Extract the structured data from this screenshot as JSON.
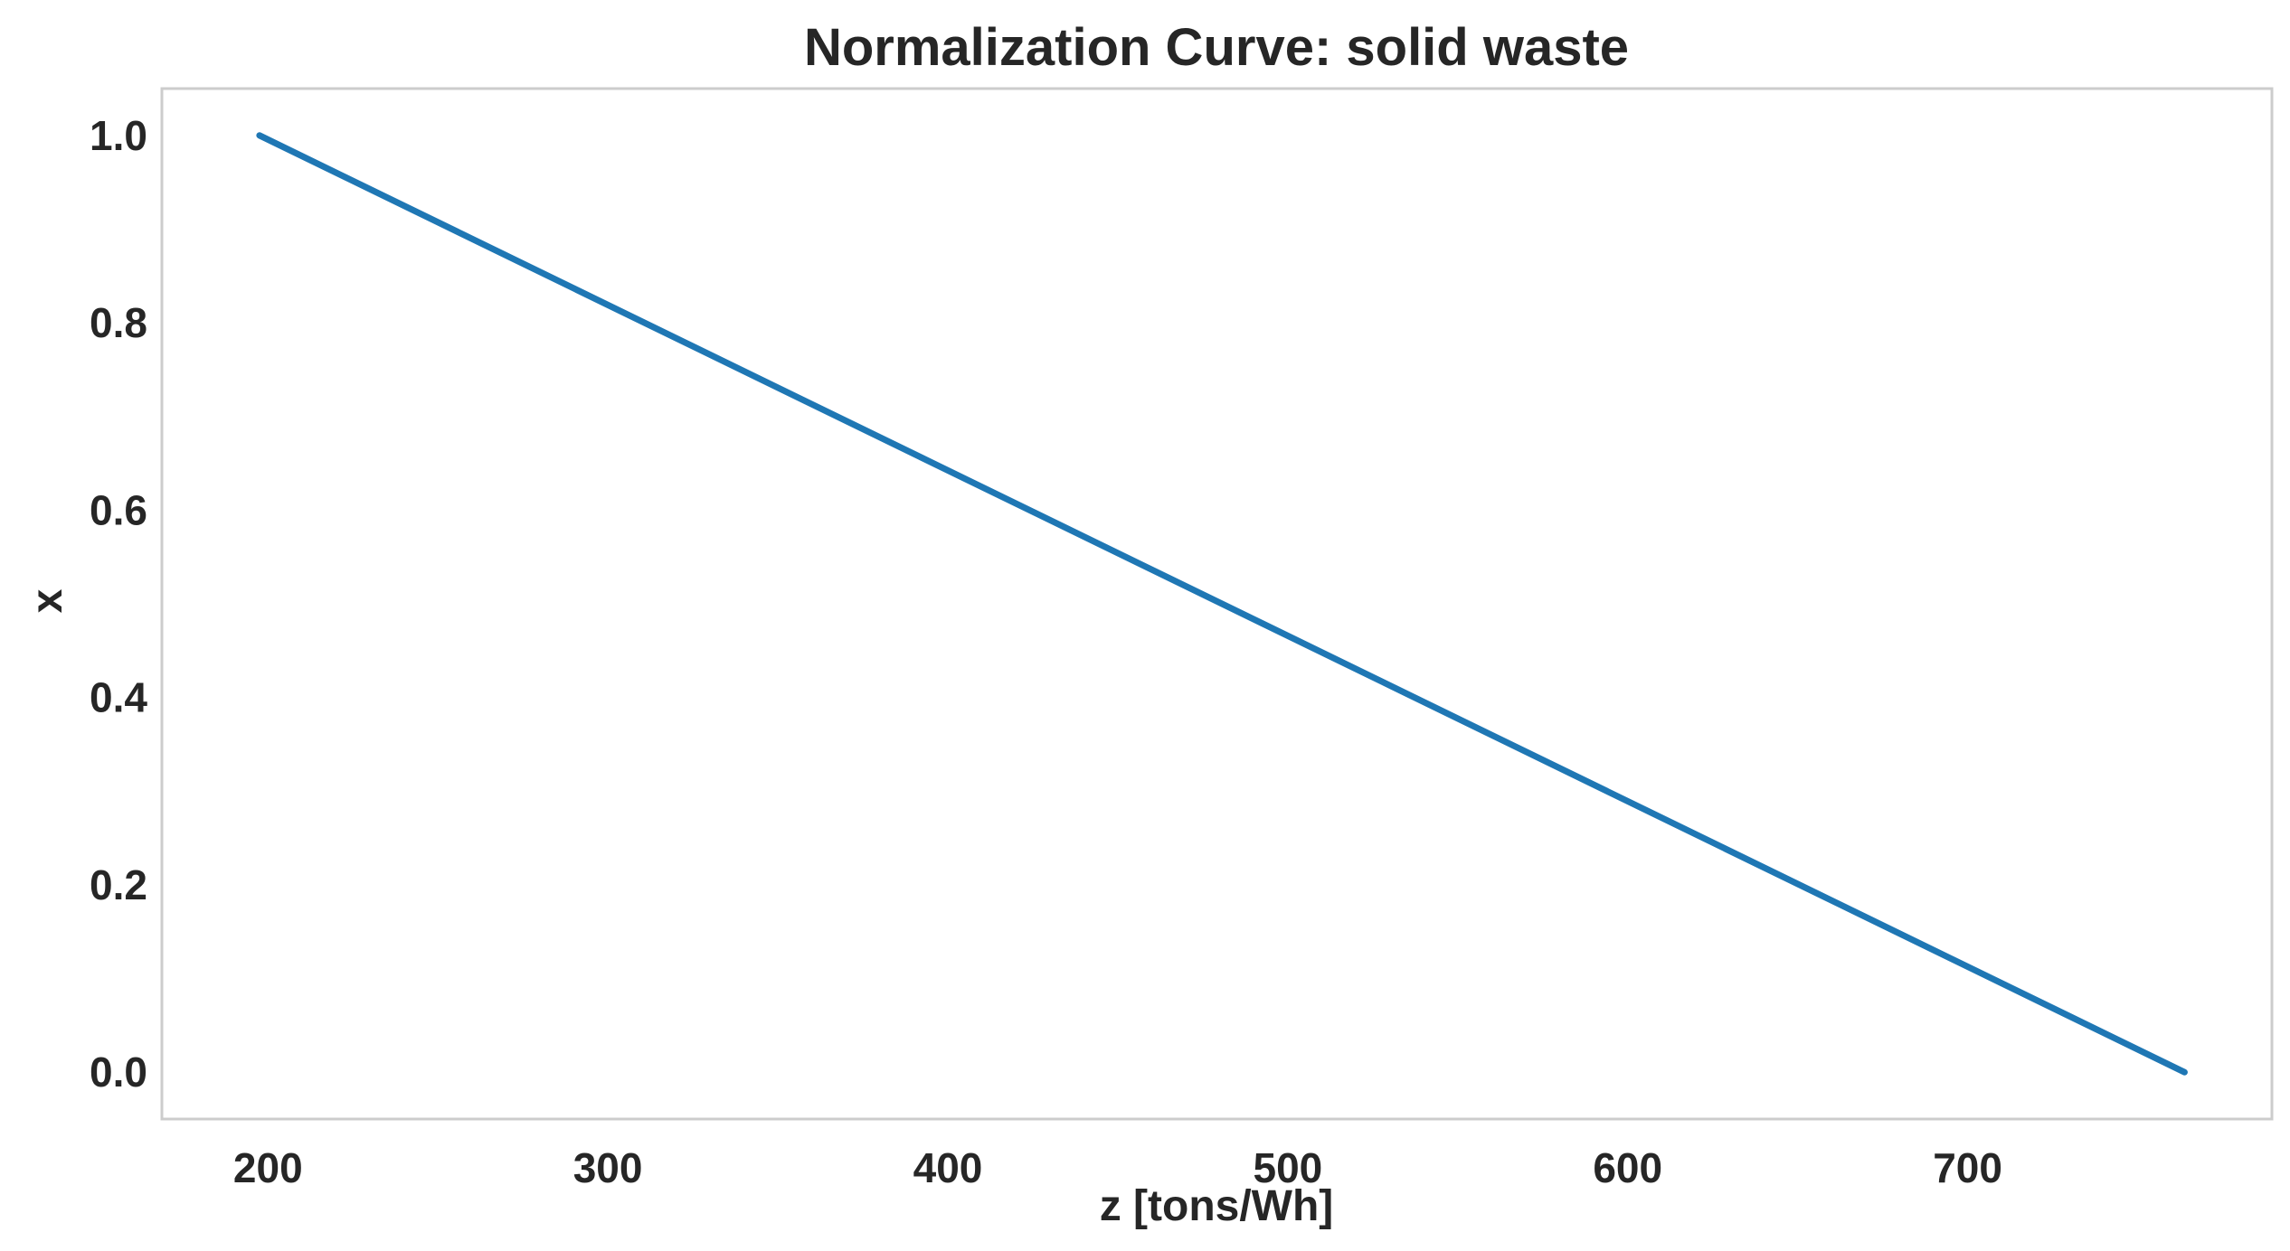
{
  "chart_data": {
    "type": "line",
    "title": "Normalization Curve: solid waste",
    "xlabel": "z [tons/Wh]",
    "ylabel": "x",
    "xlim": [
      168.8,
      789.5
    ],
    "ylim": [
      -0.05,
      1.05
    ],
    "x_ticks": [
      200,
      300,
      400,
      500,
      600,
      700
    ],
    "y_ticks": [
      0.0,
      0.2,
      0.4,
      0.6,
      0.8,
      1.0
    ],
    "x_tick_labels": [
      "200",
      "300",
      "400",
      "500",
      "600",
      "700"
    ],
    "y_tick_labels": [
      "0.0",
      "0.2",
      "0.4",
      "0.6",
      "0.8",
      "1.0"
    ],
    "grid": false,
    "series": [
      {
        "color": "#1f77b4",
        "x": [
          197.5,
          763.8
        ],
        "y": [
          1.0,
          0.0
        ]
      }
    ],
    "frame_color": "#cccccc",
    "text_color": "#262626"
  }
}
